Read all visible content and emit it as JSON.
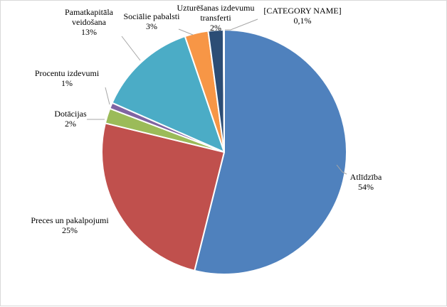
{
  "chart_data": {
    "type": "pie",
    "title": "",
    "legend": "none",
    "slices": [
      {
        "name": "Atlīdzība",
        "label_lines": [
          "Atlīdzība"
        ],
        "value_label": "54%",
        "value": 53.9,
        "color": "#4f81bd"
      },
      {
        "name": "Preces un pakalpojumi",
        "label_lines": [
          "Preces un pakalpojumi"
        ],
        "value_label": "25%",
        "value": 24.9,
        "color": "#c0504d"
      },
      {
        "name": "Dotācijas",
        "label_lines": [
          "Dotācijas"
        ],
        "value_label": "2%",
        "value": 2.0,
        "color": "#9bbb59"
      },
      {
        "name": "Procentu izdevumi",
        "label_lines": [
          "Procentu izdevumi"
        ],
        "value_label": "1%",
        "value": 0.8,
        "color": "#8064a2"
      },
      {
        "name": "Pamatkapitāla veidošana",
        "label_lines": [
          "Pamatkapitāla",
          "veidošana"
        ],
        "value_label": "13%",
        "value": 13.2,
        "color": "#4bacc6"
      },
      {
        "name": "Sociālie pabalsti",
        "label_lines": [
          "Sociālie pabalsti"
        ],
        "value_label": "3%",
        "value": 3.1,
        "color": "#f79646"
      },
      {
        "name": "Uzturēšanas izdevumu transferti",
        "label_lines": [
          "Uzturēšanas izdevumu",
          "transferti"
        ],
        "value_label": "2%",
        "value": 2.0,
        "color": "#2c4d75"
      },
      {
        "name": "[CATEGORY NAME]",
        "label_lines": [
          "[CATEGORY NAME]"
        ],
        "value_label": "0,1%",
        "value": 0.1,
        "color": "#772c2a"
      }
    ]
  }
}
